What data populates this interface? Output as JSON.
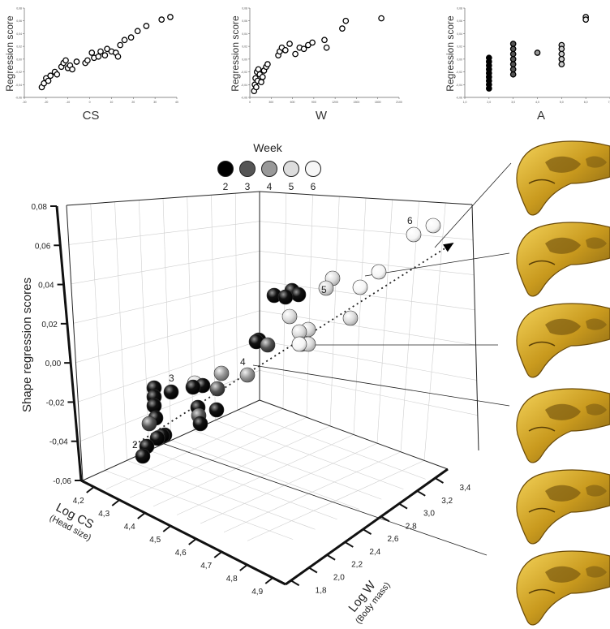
{
  "chart_data": [
    {
      "type": "scatter",
      "title": "",
      "xlabel": "CS",
      "ylabel": "Regression score",
      "x_ticks": [
        "-30",
        "-20",
        "-10",
        "0",
        "10",
        "20",
        "30",
        "40"
      ],
      "y_ticks": [
        "-0,06",
        "-0,04",
        "-0,02",
        "0,00",
        "0,02",
        "0,04",
        "0,06",
        "0,08"
      ],
      "xlim": [
        -30,
        40
      ],
      "ylim": [
        -0.06,
        0.08
      ],
      "points": [
        [
          -22,
          -0.044
        ],
        [
          -21,
          -0.038
        ],
        [
          -20,
          -0.03
        ],
        [
          -19,
          -0.034
        ],
        [
          -18,
          -0.026
        ],
        [
          -16,
          -0.02
        ],
        [
          -15,
          -0.024
        ],
        [
          -13,
          -0.012
        ],
        [
          -12,
          -0.006
        ],
        [
          -11,
          -0.002
        ],
        [
          -10,
          -0.014
        ],
        [
          -9,
          -0.01
        ],
        [
          -8,
          -0.016
        ],
        [
          -6,
          -0.004
        ],
        [
          -2,
          -0.006
        ],
        [
          -1,
          -0.002
        ],
        [
          1,
          0.01
        ],
        [
          2,
          0.002
        ],
        [
          4,
          0.004
        ],
        [
          5,
          0.012
        ],
        [
          7,
          0.006
        ],
        [
          8,
          0.016
        ],
        [
          10,
          0.012
        ],
        [
          12,
          0.01
        ],
        [
          13,
          0.004
        ],
        [
          14,
          0.022
        ],
        [
          16,
          0.03
        ],
        [
          19,
          0.034
        ],
        [
          22,
          0.044
        ],
        [
          26,
          0.052
        ],
        [
          33,
          0.062
        ],
        [
          37,
          0.066
        ]
      ]
    },
    {
      "type": "scatter",
      "title": "",
      "xlabel": "W",
      "ylabel": "Regression score",
      "x_ticks": [
        "0",
        "300",
        "600",
        "900",
        "1200",
        "1500",
        "1800",
        "2100"
      ],
      "y_ticks": [
        "-0,06",
        "-0,04",
        "-0,02",
        "0,00",
        "0,02",
        "0,04",
        "0,06",
        "0,08"
      ],
      "xlim": [
        0,
        2100
      ],
      "ylim": [
        -0.06,
        0.08
      ],
      "points": [
        [
          60,
          -0.05
        ],
        [
          70,
          -0.04
        ],
        [
          80,
          -0.03
        ],
        [
          90,
          -0.044
        ],
        [
          100,
          -0.02
        ],
        [
          110,
          -0.034
        ],
        [
          120,
          -0.016
        ],
        [
          140,
          -0.024
        ],
        [
          160,
          -0.036
        ],
        [
          180,
          -0.028
        ],
        [
          200,
          -0.018
        ],
        [
          230,
          -0.012
        ],
        [
          250,
          -0.008
        ],
        [
          400,
          0.006
        ],
        [
          420,
          0.012
        ],
        [
          450,
          0.018
        ],
        [
          500,
          0.014
        ],
        [
          560,
          0.024
        ],
        [
          640,
          0.008
        ],
        [
          700,
          0.018
        ],
        [
          760,
          0.016
        ],
        [
          820,
          0.022
        ],
        [
          880,
          0.026
        ],
        [
          1050,
          0.03
        ],
        [
          1080,
          0.018
        ],
        [
          1300,
          0.048
        ],
        [
          1350,
          0.06
        ],
        [
          1850,
          0.064
        ]
      ]
    },
    {
      "type": "scatter",
      "title": "",
      "xlabel": "A",
      "ylabel": "Regression score",
      "x_ticks": [
        "1,0",
        "2,0",
        "3,0",
        "4,0",
        "5,0",
        "6,0",
        "7,0"
      ],
      "y_ticks": [
        "-0,06",
        "-0,04",
        "-0,02",
        "0,00",
        "0,02",
        "0,04",
        "0,06",
        "0,08"
      ],
      "xlim": [
        1,
        7
      ],
      "ylim": [
        -0.06,
        0.08
      ],
      "points": [
        [
          2,
          -0.046,
          "#000000"
        ],
        [
          2,
          -0.04,
          "#000000"
        ],
        [
          2,
          -0.034,
          "#000000"
        ],
        [
          2,
          -0.028,
          "#000000"
        ],
        [
          2,
          -0.022,
          "#000000"
        ],
        [
          2,
          -0.016,
          "#000000"
        ],
        [
          2,
          -0.01,
          "#000000"
        ],
        [
          2,
          -0.004,
          "#000000"
        ],
        [
          2,
          0.002,
          "#000000"
        ],
        [
          3,
          -0.024,
          "#555555"
        ],
        [
          3,
          -0.016,
          "#555555"
        ],
        [
          3,
          -0.008,
          "#555555"
        ],
        [
          3,
          0.0,
          "#555555"
        ],
        [
          3,
          0.008,
          "#555555"
        ],
        [
          3,
          0.016,
          "#555555"
        ],
        [
          3,
          0.024,
          "#555555"
        ],
        [
          4,
          0.01,
          "#999999"
        ],
        [
          5,
          0.022,
          "#cccccc"
        ],
        [
          5,
          0.016,
          "#cccccc"
        ],
        [
          5,
          0.008,
          "#cccccc"
        ],
        [
          5,
          0.0,
          "#cccccc"
        ],
        [
          5,
          -0.008,
          "#cccccc"
        ],
        [
          6,
          0.066,
          "#eeeeee"
        ],
        [
          6,
          0.062,
          "#eeeeee"
        ]
      ]
    },
    {
      "type": "scatter",
      "title": "",
      "legend_title": "Week",
      "legend": [
        {
          "label": "2",
          "color": "#000000"
        },
        {
          "label": "3",
          "color": "#555555"
        },
        {
          "label": "4",
          "color": "#999999"
        },
        {
          "label": "5",
          "color": "#dddddd"
        },
        {
          "label": "6",
          "color": "#f7f7f7"
        }
      ],
      "legend_position": "top",
      "zlabel": "Shape regression scores",
      "xlabel": "Log CS",
      "xlabel_sub": "(Head size)",
      "ylabel": "Log W",
      "ylabel_sub": "(Body mass)",
      "z_ticks": [
        "0,08",
        "0,06",
        "0,04",
        "0,02",
        "0,00",
        "-0,02",
        "-0,04",
        "-0,06"
      ],
      "x_ticks": [
        "4,2",
        "4,3",
        "4,4",
        "4,5",
        "4,6",
        "4,7",
        "4,8",
        "4,9"
      ],
      "y_ticks": [
        "1,8",
        "2,0",
        "2,2",
        "2,4",
        "2,6",
        "2,8",
        "3,0",
        "3,2",
        "3,4"
      ],
      "week_labels": [
        "2",
        "3",
        "4",
        "5",
        "6"
      ],
      "series": [
        {
          "name": "2",
          "color": "#000000",
          "points": [
            [
              176,
              562
            ],
            [
              181,
              550
            ],
            [
              194,
              540
            ],
            [
              200,
              537
            ],
            [
              203,
              536
            ],
            [
              190,
              478
            ],
            [
              190,
              489
            ],
            [
              190,
              500
            ],
            [
              192,
              515
            ],
            [
              211,
              483
            ],
            [
              238,
              477
            ],
            [
              244,
              502
            ],
            [
              247,
              522
            ],
            [
              250,
              475
            ],
            [
              267,
              505
            ],
            [
              319,
              419
            ],
            [
              316,
              421
            ],
            [
              360,
              358
            ],
            [
              368,
              363
            ],
            [
              352,
              366
            ],
            [
              338,
              364
            ]
          ]
        },
        {
          "name": "3",
          "color": "#555555",
          "points": [
            [
              184,
              522
            ],
            [
              245,
              512
            ],
            [
              268,
              479
            ],
            [
              330,
              425
            ]
          ]
        },
        {
          "name": "4",
          "color": "#999999",
          "points": [
            [
              305,
              462
            ],
            [
              273,
              460
            ]
          ]
        },
        {
          "name": "5",
          "color": "#dddddd",
          "points": [
            [
              240,
              472
            ],
            [
              357,
              390
            ],
            [
              369,
              409
            ],
            [
              372,
              424
            ],
            [
              380,
              424
            ],
            [
              380,
              406
            ],
            [
              402,
              355
            ],
            [
              410,
              343
            ],
            [
              432,
              392
            ]
          ]
        },
        {
          "name": "6",
          "color": "#f7f7f7",
          "points": [
            [
              444,
              354
            ],
            [
              467,
              335
            ],
            [
              510,
              289
            ],
            [
              534,
              278
            ],
            [
              369,
              424
            ]
          ]
        }
      ]
    }
  ]
}
